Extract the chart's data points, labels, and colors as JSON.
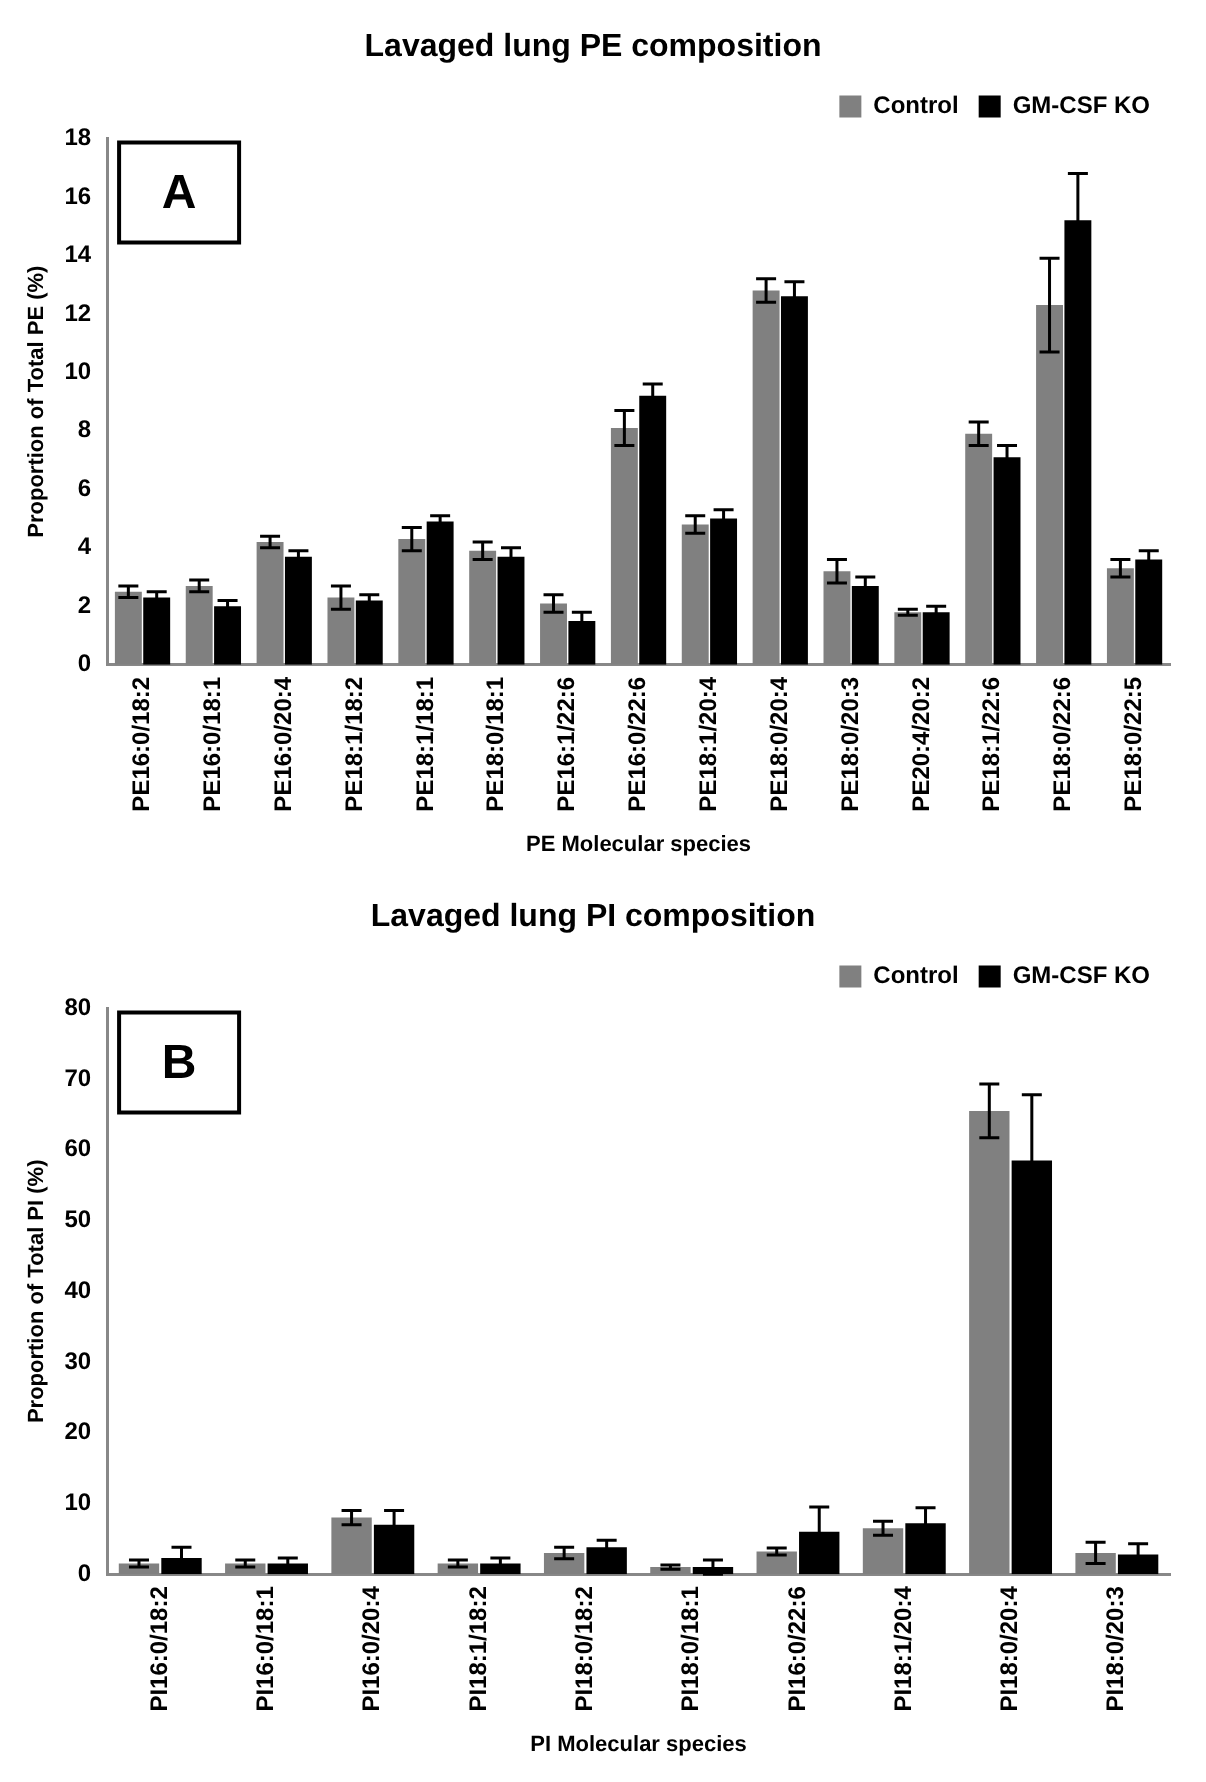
{
  "chart_data": [
    {
      "type": "bar",
      "title": "Lavaged lung PE composition",
      "xlabel": "PE Molecular species",
      "ylabel": "Proportion of Total PE (%)",
      "annotations": [
        "A"
      ],
      "categories": [
        "PE16:0/18:2",
        "PE16:0/18:1",
        "PE16:0/20:4",
        "PE18:1/18:2",
        "PE18:1/18:1",
        "PE18:0/18:1",
        "PE16:1/22:6",
        "PE16:0/22:6",
        "PE18:1/20:4",
        "PE18:0/20:4",
        "PE18:0/20:3",
        "PE20:4/20:2",
        "PE18:1/22:6",
        "PE18:0/22:6",
        "PE18:0/22:5"
      ],
      "series": [
        {
          "name": "Control",
          "color": "#808080",
          "values": [
            2.5,
            2.7,
            4.2,
            2.3,
            4.3,
            3.9,
            2.1,
            8.1,
            4.8,
            12.8,
            3.2,
            1.8,
            7.9,
            12.3,
            3.3
          ],
          "errors": [
            0.2,
            0.2,
            0.2,
            0.4,
            0.4,
            0.3,
            0.3,
            0.6,
            0.3,
            0.4,
            0.4,
            0.1,
            0.4,
            1.6,
            0.3
          ]
        },
        {
          "name": "GM-CSF KO",
          "color": "#000000",
          "values": [
            2.3,
            2.0,
            3.7,
            2.2,
            4.9,
            3.7,
            1.5,
            9.2,
            5.0,
            12.6,
            2.7,
            1.8,
            7.1,
            15.2,
            3.6
          ],
          "errors": [
            0.2,
            0.2,
            0.2,
            0.2,
            0.2,
            0.3,
            0.3,
            0.4,
            0.3,
            0.5,
            0.3,
            0.2,
            0.4,
            1.6,
            0.3
          ]
        }
      ],
      "ylim": [
        0,
        18
      ],
      "yticks": [
        0,
        2,
        4,
        6,
        8,
        10,
        12,
        14,
        16,
        18
      ],
      "grid": false,
      "legend": "top right"
    },
    {
      "type": "bar",
      "title": "Lavaged lung PI composition",
      "xlabel": "PI Molecular species",
      "ylabel": "Proportion of Total PI (%)",
      "annotations": [
        "B"
      ],
      "categories": [
        "PI16:0/18:2",
        "PI16:0/18:1",
        "PI16:0/20:4",
        "PI18:1/18:2",
        "PI18:0/18:2",
        "PI18:0/18:1",
        "PI16:0/22:6",
        "PI18:1/20:4",
        "PI18:0/20:4",
        "PI18:0/20:3"
      ],
      "series": [
        {
          "name": "Control",
          "color": "#808080",
          "values": [
            1.5,
            1.5,
            8,
            1.5,
            3,
            1,
            3.2,
            6.5,
            65.5,
            3
          ],
          "errors": [
            0.5,
            0.5,
            1,
            0.5,
            0.8,
            0.3,
            0.5,
            1,
            3.8,
            1.5
          ]
        },
        {
          "name": "GM-CSF KO",
          "color": "#000000",
          "values": [
            2.3,
            1.5,
            7,
            1.5,
            3.8,
            1,
            6,
            7.2,
            58.5,
            2.8
          ],
          "errors": [
            1.5,
            0.8,
            2,
            0.8,
            1,
            1,
            3.5,
            2.2,
            9.3,
            1.5
          ]
        }
      ],
      "ylim": [
        0,
        80
      ],
      "yticks": [
        0,
        10,
        20,
        30,
        40,
        50,
        60,
        70,
        80
      ],
      "grid": false,
      "legend": "top right"
    }
  ]
}
